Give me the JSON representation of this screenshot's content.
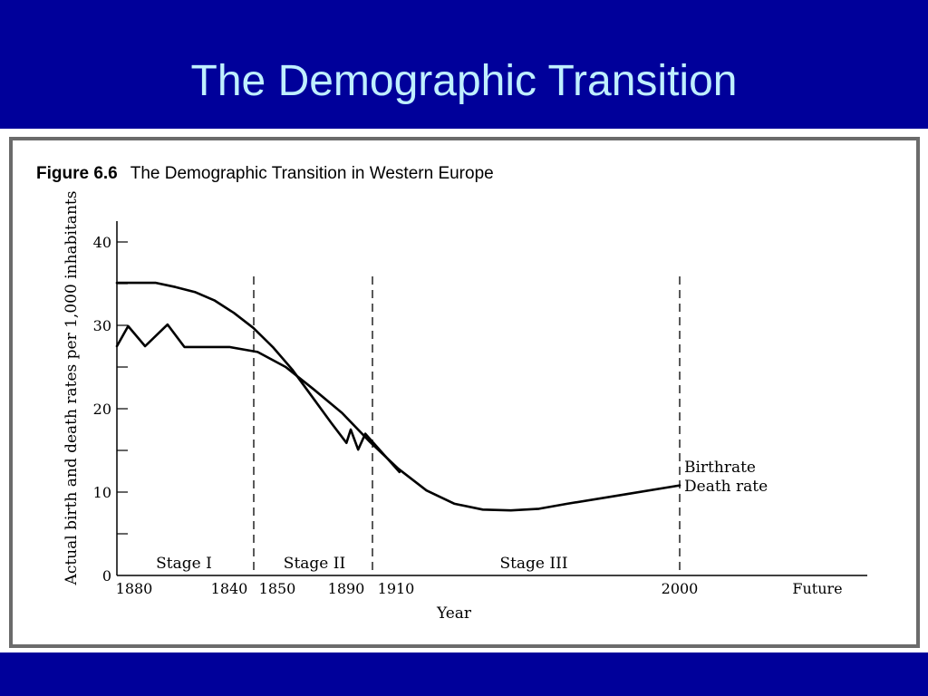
{
  "slide": {
    "title": "The Demographic Transition",
    "colors": {
      "background": "#00009a",
      "title": "#bfefff",
      "frame": "#6b6b6b"
    }
  },
  "figure": {
    "number": "Figure 6.6",
    "caption": "The Demographic Transition in Western Europe"
  },
  "chart_data": {
    "type": "line",
    "title": "The Demographic Transition in Western Europe",
    "xlabel": "Year",
    "ylabel": "Actual birth and death rates per 1,000 inhabitants",
    "ylim": [
      0,
      40
    ],
    "yticks": [
      0,
      10,
      20,
      30,
      40
    ],
    "x_tick_labels": [
      "1880",
      "1840",
      "1850",
      "1890",
      "1910",
      "2000",
      "Future"
    ],
    "stages": [
      {
        "label": "Stage I"
      },
      {
        "label": "Stage II"
      },
      {
        "label": "Stage III"
      }
    ],
    "series": [
      {
        "name": "Birthrate",
        "points": [
          [
            0,
            35.1
          ],
          [
            1,
            35.1
          ],
          [
            2,
            35.1
          ],
          [
            3,
            34.6
          ],
          [
            4,
            34
          ],
          [
            5,
            33
          ],
          [
            6,
            31.5
          ],
          [
            7,
            29.7
          ],
          [
            8,
            27.4
          ],
          [
            9,
            24.7
          ],
          [
            10,
            21.5
          ],
          [
            11,
            18.3
          ],
          [
            11.78,
            15.9
          ],
          [
            12,
            17.5
          ],
          [
            12.38,
            15.1
          ],
          [
            12.75,
            17
          ],
          [
            14.5,
            12.4
          ]
        ]
      },
      {
        "name": "Death rate",
        "points": [
          [
            0,
            27.5
          ],
          [
            0.2,
            29.9
          ],
          [
            0.5,
            27.5
          ],
          [
            0.9,
            30.1
          ],
          [
            1.2,
            27.4
          ],
          [
            1.7,
            27.4
          ],
          [
            2,
            27.4
          ],
          [
            2.5,
            26.8
          ],
          [
            3,
            25
          ],
          [
            3.5,
            22.3
          ],
          [
            4,
            19.5
          ],
          [
            4.5,
            16
          ],
          [
            5,
            12.8
          ],
          [
            5.5,
            10.2
          ],
          [
            6,
            8.6
          ],
          [
            6.5,
            7.9
          ],
          [
            7,
            7.8
          ],
          [
            7.5,
            8
          ],
          [
            8,
            8.6
          ],
          [
            9,
            9.7
          ],
          [
            10,
            10.8
          ]
        ]
      }
    ]
  }
}
